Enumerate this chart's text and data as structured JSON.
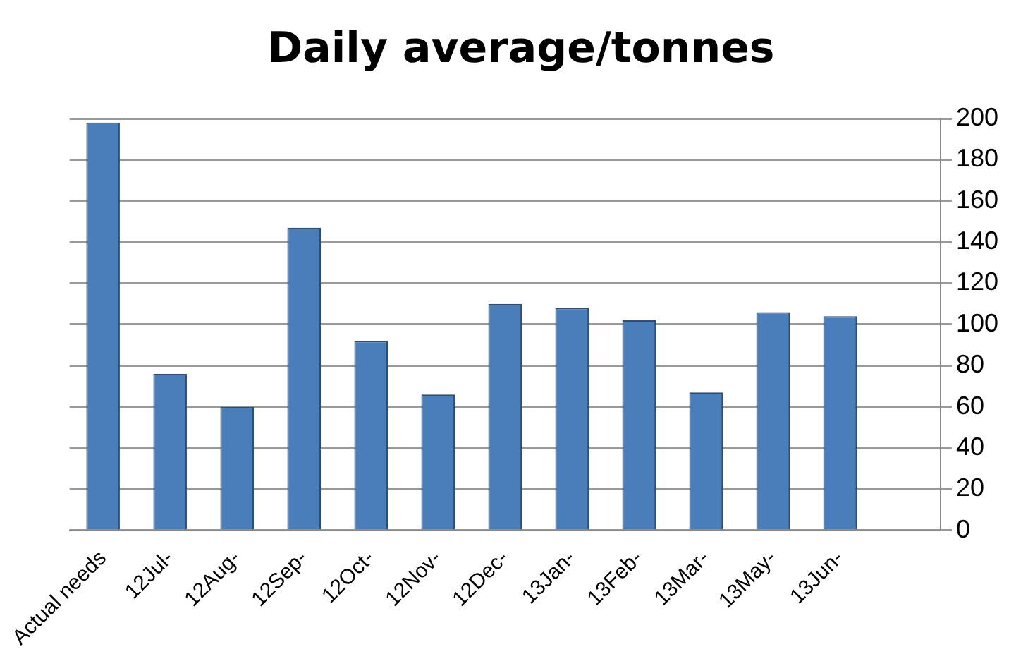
{
  "chart_data": {
    "type": "bar",
    "title": "Daily average/tonnes",
    "categories": [
      "Actual needs",
      "12Jul-",
      "12Aug-",
      "12Sep-",
      "12Oct-",
      "12Nov-",
      "12Dec-",
      "13Jan-",
      "13Feb-",
      "13Mar-",
      "13May-",
      "13Jun-",
      null
    ],
    "values": [
      198,
      76,
      60,
      147,
      92,
      66,
      110,
      108,
      102,
      67,
      106,
      104,
      null
    ],
    "color": "#4a7ebb",
    "ylim": [
      0,
      200
    ],
    "yticks": [
      0,
      20,
      40,
      60,
      80,
      100,
      120,
      140,
      160,
      180,
      200
    ],
    "grid": "y",
    "legend": false
  }
}
